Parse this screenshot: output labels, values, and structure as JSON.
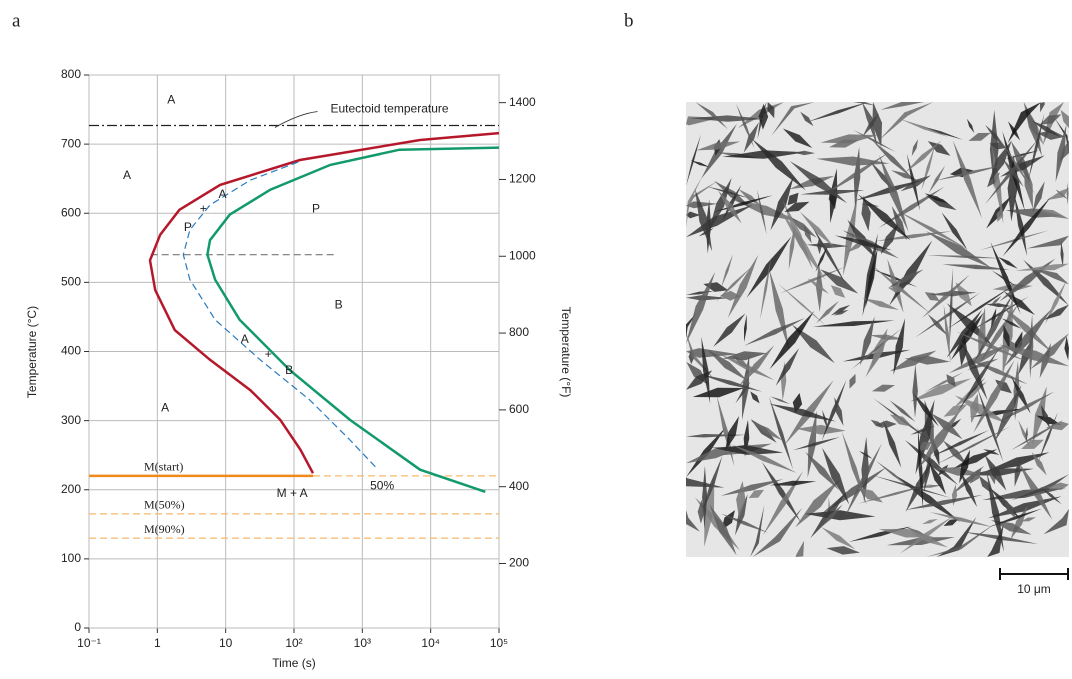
{
  "panel_labels": [
    "a",
    "b"
  ],
  "chart_data": {
    "type": "line",
    "xlabel": "Time (s)",
    "ylabel": "Temperature (°C)",
    "y2label": "Temperature (°F)",
    "xscale": "log",
    "grid": true,
    "xlim": [
      0.1,
      100000
    ],
    "xticks": [
      {
        "value": 0.1,
        "label": "10⁻¹"
      },
      1,
      10,
      {
        "value": 100,
        "label": "10²"
      },
      {
        "value": 1000,
        "label": "10³"
      },
      {
        "value": 10000,
        "label": "10⁴"
      },
      {
        "value": 100000,
        "label": "10⁵"
      }
    ],
    "ylim": [
      0,
      800
    ],
    "yticks": [
      0,
      100,
      200,
      300,
      400,
      500,
      600,
      700,
      800
    ],
    "y2lim": [
      32,
      1472
    ],
    "y2ticks": [
      200,
      400,
      600,
      800,
      1000,
      1200,
      1400
    ],
    "series": [
      {
        "name": "M(start)",
        "color": "#f08a1c",
        "line_style": "solid",
        "x": [
          0.1,
          190
        ],
        "y": [
          220,
          220
        ]
      },
      {
        "color": "#f5b86b",
        "line_style": "dashed",
        "x": [
          190,
          100000
        ],
        "y": [
          220,
          220
        ]
      },
      {
        "name": "M(50%)",
        "color": "#f5b86b",
        "line_style": "dashed",
        "x": [
          0.1,
          100000
        ],
        "y": [
          165,
          165
        ]
      },
      {
        "name": "M(90%)",
        "color": "#f5b86b",
        "line_style": "dashed",
        "x": [
          0.1,
          100000
        ],
        "y": [
          130,
          130
        ]
      },
      {
        "color": "#222222",
        "line_style": "dashdot",
        "x": [
          0.1,
          100000
        ],
        "y": [
          727,
          727
        ]
      },
      {
        "color": "#777777",
        "line_style": "dashed",
        "x": [
          0.8,
          400
        ],
        "y": [
          540,
          540
        ]
      },
      {
        "color": "#b5182b",
        "line_style": "solid",
        "x": [
          100000,
          7000,
          122,
          8.3,
          2.1,
          1.1,
          0.78,
          0.93,
          1.8,
          5.9,
          23,
          63,
          124,
          190
        ],
        "y": [
          716,
          706,
          677,
          641,
          605,
          569,
          532,
          489,
          431,
          388,
          344,
          301,
          258,
          224
        ]
      },
      {
        "color": "#2a7ac0",
        "line_style": "dashed",
        "x": [
          115,
          23,
          5.9,
          3.0,
          2.4,
          3.0,
          7,
          32,
          170,
          660,
          1700
        ],
        "y": [
          674,
          648,
          612,
          576,
          540,
          504,
          446,
          388,
          330,
          272,
          229
        ]
      },
      {
        "color": "#129a6a",
        "line_style": "solid",
        "x": [
          100000,
          3500,
          340,
          45,
          11.5,
          5.9,
          5.4,
          7,
          16,
          87,
          660,
          7000,
          63000
        ],
        "y": [
          695,
          692,
          670,
          634,
          598,
          561,
          540,
          504,
          446,
          373,
          301,
          229,
          197
        ]
      }
    ],
    "annotations": [
      {
        "text": "A",
        "x": 1.6,
        "y": 763
      },
      {
        "text": "A",
        "x": 0.36,
        "y": 654
      },
      {
        "text": "A",
        "x": 9,
        "y": 627
      },
      {
        "text": "+",
        "x": 4.7,
        "y": 606
      },
      {
        "text": "P",
        "x": 2.8,
        "y": 579
      },
      {
        "text": "P",
        "x": 210,
        "y": 606
      },
      {
        "text": "B",
        "x": 450,
        "y": 467
      },
      {
        "text": "A",
        "x": 19,
        "y": 417
      },
      {
        "text": "+",
        "x": 42,
        "y": 395
      },
      {
        "text": "B",
        "x": 85,
        "y": 372
      },
      {
        "text": "A",
        "x": 1.3,
        "y": 318
      },
      {
        "text": "M + A",
        "x": 94,
        "y": 194
      },
      {
        "text": "50%",
        "x": 1950,
        "y": 205
      },
      {
        "text": "Eutectoid temperature",
        "x": 2500,
        "y": 750
      }
    ]
  },
  "micrograph": {
    "scale_label": "10 μm"
  }
}
